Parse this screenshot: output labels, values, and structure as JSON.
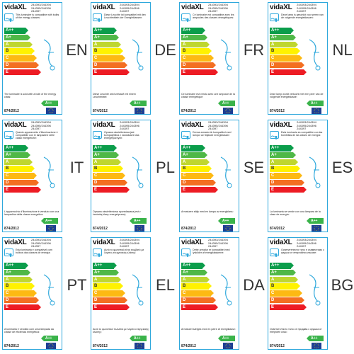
{
  "brand": "vidaXL",
  "codes": "244393/244394\n244395/244396\n244397",
  "regulation": "874/2012",
  "classes": [
    {
      "label": "A++",
      "color": "#0b9d4b"
    },
    {
      "label": "A+",
      "color": "#4fb847"
    },
    {
      "label": "A",
      "color": "#bfd630"
    },
    {
      "label": "B",
      "color": "#fff200"
    },
    {
      "label": "C",
      "color": "#fdb913"
    },
    {
      "label": "D",
      "color": "#f36f21"
    },
    {
      "label": "E",
      "color": "#ed1c24"
    }
  ],
  "badge": "A++",
  "labels": [
    {
      "lang": "EN",
      "description": "This luminaire is compatible with bulbs of the energy classes:",
      "bottom": "The luminaire is sold with a bulb of the energy class:"
    },
    {
      "lang": "DE",
      "description": "Diese Leuchte ist kompatibel mit den Leuchtmitteln der Energieklassen:",
      "bottom": "Diese Leuchte wird verkauft mit einem Leuchtmittel"
    },
    {
      "lang": "FR",
      "description": "Ce luminaire est compatible avec les ampoules des classes énergétiques:",
      "bottom": "Ce luminaire est vendu avec une ampoule de la classe énergétique:"
    },
    {
      "lang": "NL",
      "description": "Deze lamp is geschikt voor peren van de volgende energieklassen:",
      "bottom": "Deze lamp wordt verkocht met een peer van de volgende energieklasse:"
    },
    {
      "lang": "IT",
      "description": "Questo apparecchio d'illuminazione è compatibile con le lampadine delle classi energetiche:",
      "bottom": "L'apparecchio d'illuminazione è venduto con una lampadina della classe energetica:"
    },
    {
      "lang": "PL",
      "description": "Oprawa oświetleniowa jest kompatybilna z żarówkami klas energetycznych:",
      "bottom": "Oprawa oświetleniowa sprzedawana jest z żarówką klasy energetycznej:"
    },
    {
      "lang": "SE",
      "description": "Denna armatur är kompatibel med lampor av följande energiklasser:",
      "bottom": "Armaturen säljs med en lampa av energiklass:"
    },
    {
      "lang": "ES",
      "description": "Esta luminaria es compatible con las bombillas de las clases de energía:",
      "bottom": "La luminaria se vende con una lámpara de la clase de energía:"
    },
    {
      "lang": "PT",
      "description": "Esta luminária é compatível com bulbos das classes de energia:",
      "bottom": "A luminária é vendido com uma lâmpada da classe de eficiência energética:"
    },
    {
      "lang": "EL",
      "description": "Αυτό το φωτιστικό είναι συμβατό με λάμπες ενεργειακής κλάσης:",
      "bottom": "Αυτό το φωτιστικό πωλείται με λάμπα ενεργειακής κλάσης:"
    },
    {
      "lang": "DA",
      "description": "Dette armatur er kompatibel med lyskilder af energiklasserne:",
      "bottom": "Armaturet sælges med en pære af energiklasse:"
    },
    {
      "lang": "BG",
      "description": "Осветителното тяло е съвместимо с крушки от енергийни класове:",
      "bottom": "Осветителното тяло се продава с крушка от енергиен клас:"
    }
  ]
}
